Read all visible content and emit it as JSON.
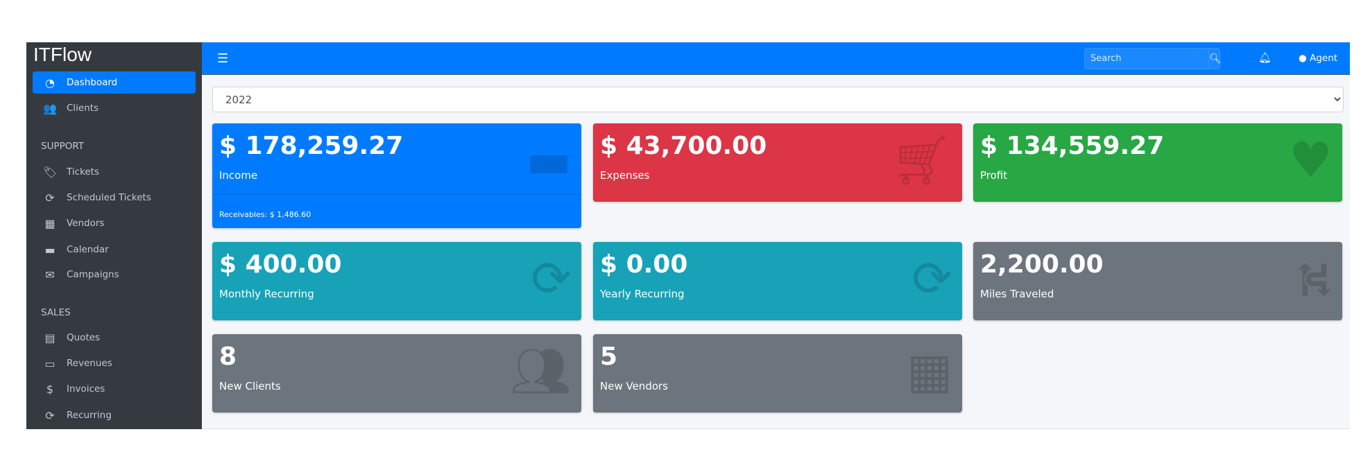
{
  "app": {
    "title": "ITFlow"
  },
  "sidebar": {
    "items": [
      {
        "label": "Dashboard",
        "icon": "dashboard-icon",
        "active": true
      },
      {
        "label": "Clients",
        "icon": "users-icon"
      }
    ],
    "support_header": "SUPPORT",
    "support": [
      {
        "label": "Tickets",
        "icon": "tags-icon"
      },
      {
        "label": "Scheduled Tickets",
        "icon": "sync-icon"
      },
      {
        "label": "Vendors",
        "icon": "building-icon"
      },
      {
        "label": "Calendar",
        "icon": "calendar-icon"
      },
      {
        "label": "Campaigns",
        "icon": "envelope-icon"
      }
    ],
    "sales_header": "SALES",
    "sales": [
      {
        "label": "Quotes",
        "icon": "file-icon"
      },
      {
        "label": "Revenues",
        "icon": "credit-card-icon"
      },
      {
        "label": "Invoices",
        "icon": "invoice-icon"
      },
      {
        "label": "Recurring",
        "icon": "sync-icon"
      }
    ]
  },
  "topbar": {
    "search_placeholder": "Search",
    "user": "Agent"
  },
  "filter": {
    "year": "2022"
  },
  "cards": [
    {
      "value": "$ 178,259.27",
      "label": "Income",
      "footer": "Receivables: $ 1,486.60",
      "color": "#007bff",
      "icon": "credit-card-icon"
    },
    {
      "value": "$ 43,700.00",
      "label": "Expenses",
      "color": "#dc3545",
      "icon": "cart-icon"
    },
    {
      "value": "$ 134,559.27",
      "label": "Profit",
      "color": "#28a745",
      "icon": "heart-icon"
    },
    {
      "value": "$ 400.00",
      "label": "Monthly Recurring",
      "color": "#17a2b8",
      "icon": "sync-icon"
    },
    {
      "value": "$ 0.00",
      "label": "Yearly Recurring",
      "color": "#17a2b8",
      "icon": "sync-icon"
    },
    {
      "value": "2,200.00",
      "label": "Miles Traveled",
      "color": "#6c757d",
      "icon": "route-icon"
    },
    {
      "value": "8",
      "label": "New Clients",
      "color": "#6c757d",
      "icon": "users-icon"
    },
    {
      "value": "5",
      "label": "New Vendors",
      "color": "#6c757d",
      "icon": "building-icon"
    }
  ]
}
